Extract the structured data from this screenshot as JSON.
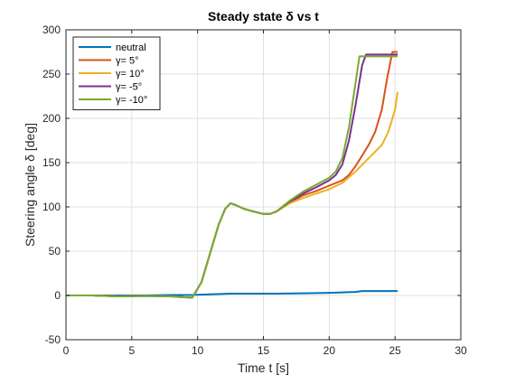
{
  "chart_data": {
    "type": "line",
    "title": "Steady state δ vs t",
    "xlabel": "Time t [s]",
    "ylabel": "Steering angle δ [deg]",
    "xlim": [
      0,
      30
    ],
    "ylim": [
      -50,
      300
    ],
    "xticks": [
      "0",
      "5",
      "10",
      "15",
      "20",
      "25",
      "30"
    ],
    "yticks": [
      "-50",
      "0",
      "50",
      "100",
      "150",
      "200",
      "250",
      "300"
    ],
    "grid": true,
    "legend_position": "top-left",
    "series": [
      {
        "name": "neutral",
        "color": "#0072BD",
        "x": [
          0,
          2,
          4,
          6,
          8,
          9.5,
          10.5,
          11.5,
          12.5,
          14,
          16,
          18,
          20,
          21,
          22,
          22.5,
          23,
          24,
          25.2
        ],
        "y": [
          0,
          0,
          0,
          0,
          0.5,
          0.5,
          1,
          1.5,
          2,
          2,
          2,
          2.5,
          3,
          3.5,
          4,
          5,
          5,
          5,
          5
        ]
      },
      {
        "name": "γ= 5°",
        "color": "#D95319",
        "x": [
          0,
          2,
          4,
          6,
          8,
          9,
          9.6,
          10.3,
          11,
          11.6,
          12.1,
          12.5,
          12.9,
          13.5,
          14.2,
          15,
          15.5,
          16,
          17,
          18,
          19,
          20,
          21,
          21.5,
          22,
          22.5,
          23,
          23.5,
          24,
          24.4,
          24.8,
          25.2
        ],
        "y": [
          0,
          0,
          -1,
          -0.5,
          -1,
          -2,
          -2.5,
          15,
          50,
          80,
          98,
          104,
          102,
          98,
          95,
          92,
          92,
          95,
          105,
          113,
          118,
          124,
          130,
          136,
          146,
          158,
          170,
          185,
          210,
          245,
          275,
          275
        ]
      },
      {
        "name": "γ= 10°",
        "color": "#EDB120",
        "x": [
          0,
          2,
          4,
          6,
          8,
          9,
          9.6,
          10.3,
          11,
          11.6,
          12.1,
          12.5,
          12.9,
          13.5,
          14.2,
          15,
          15.5,
          16,
          17,
          18,
          19,
          20,
          21,
          22,
          23,
          24,
          24.5,
          25,
          25.2
        ],
        "y": [
          0,
          0,
          -1,
          -0.5,
          -1,
          -2,
          -2.5,
          15,
          50,
          80,
          98,
          104,
          102,
          98,
          95,
          92,
          92,
          95,
          104,
          110,
          115,
          120,
          127,
          140,
          155,
          170,
          185,
          210,
          230
        ]
      },
      {
        "name": "γ= -5°",
        "color": "#7E2F8E",
        "x": [
          0,
          2,
          4,
          6,
          8,
          9,
          9.6,
          10.3,
          11,
          11.6,
          12.1,
          12.5,
          12.9,
          13.5,
          14.2,
          15,
          15.5,
          16,
          17,
          18,
          19,
          20,
          20.5,
          21,
          21.5,
          22,
          22.5,
          22.8,
          23,
          25.2
        ],
        "y": [
          0,
          0,
          -1,
          -0.5,
          -1,
          -2,
          -2.5,
          15,
          50,
          80,
          98,
          104,
          102,
          98,
          95,
          92,
          92,
          95,
          106,
          115,
          122,
          130,
          136,
          148,
          175,
          215,
          260,
          272,
          272,
          272
        ]
      },
      {
        "name": "γ= -10°",
        "color": "#77AC30",
        "x": [
          0,
          2,
          4,
          6,
          8,
          9,
          9.6,
          10.3,
          11,
          11.6,
          12.1,
          12.5,
          12.9,
          13.5,
          14.2,
          15,
          15.5,
          16,
          17,
          18,
          19,
          20,
          20.5,
          21,
          21.5,
          22,
          22.3,
          22.5,
          25.2
        ],
        "y": [
          0,
          0,
          -1,
          -0.5,
          -1,
          -2,
          -2.5,
          15,
          50,
          80,
          98,
          104,
          102,
          98,
          95,
          92,
          92,
          95,
          107,
          117,
          125,
          133,
          140,
          155,
          190,
          240,
          270,
          270,
          270
        ]
      }
    ]
  }
}
